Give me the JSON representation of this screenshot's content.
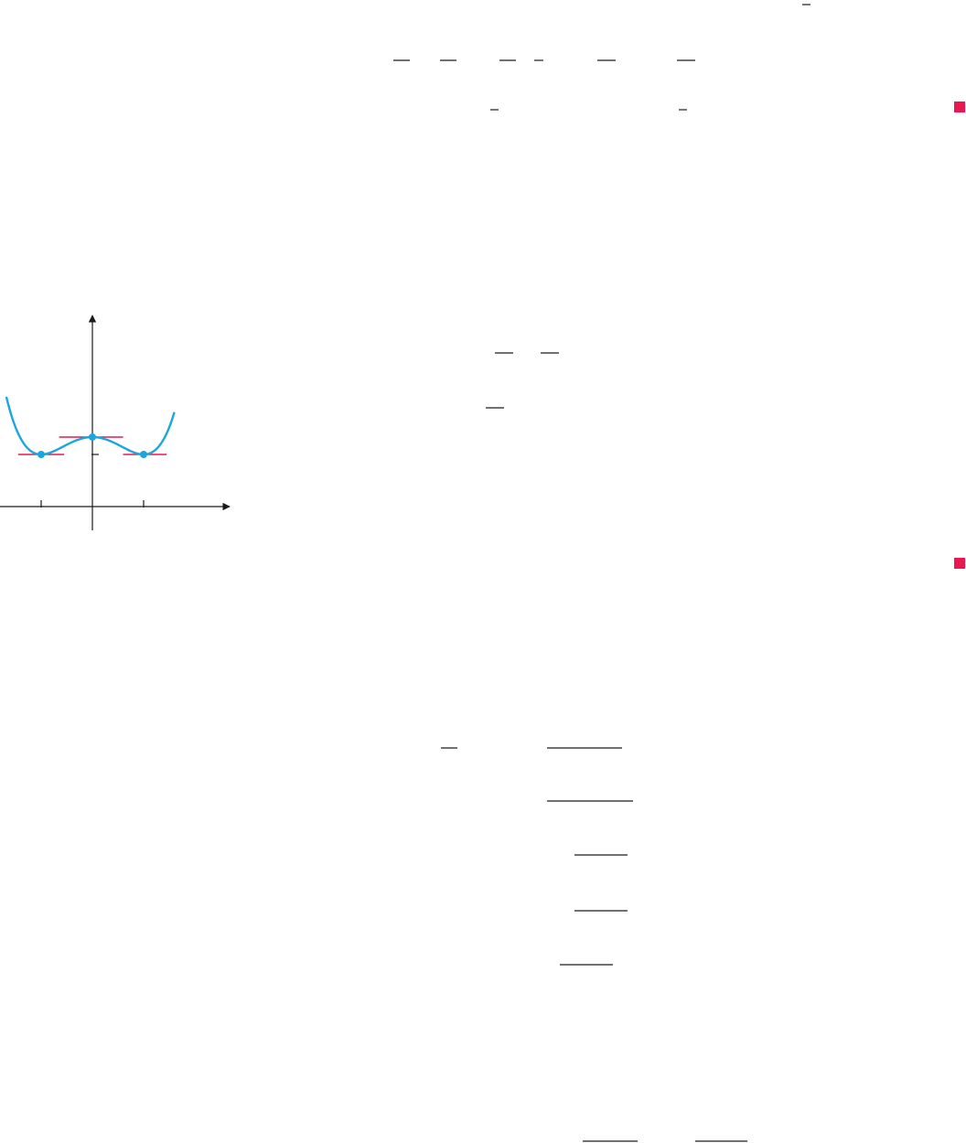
{
  "page": {
    "section_end_markers": [
      "end-of-example-marker",
      "end-of-example-marker"
    ],
    "colors": {
      "background": "#ffffff",
      "curve": "#1ba6e0",
      "tangent_lines": "#e8194f",
      "markers": "#e8194f",
      "rules": "#1a1a1a",
      "axes": "#1a1a1a"
    }
  },
  "chart_data": {
    "type": "line",
    "title": "",
    "xlabel": "",
    "ylabel": "",
    "grid": false,
    "x_ticks": [
      -1,
      1
    ],
    "y_ticks": [
      3
    ],
    "xlim": [
      -1.8,
      2.6
    ],
    "ylim": [
      -0.5,
      6.7
    ],
    "series": [
      {
        "function": "x^4 - 2x^2 + 4",
        "x_range": [
          -1.68,
          1.6
        ]
      }
    ],
    "critical_points": [
      {
        "x": -1,
        "y": 3,
        "kind": "minimum"
      },
      {
        "x": 0,
        "y": 4,
        "kind": "maximum"
      },
      {
        "x": 1,
        "y": 3,
        "kind": "minimum"
      }
    ],
    "horizontal_tangents": [
      {
        "x_from": -1.45,
        "x_to": -0.55,
        "y": 3
      },
      {
        "x_from": -0.65,
        "x_to": 0.6,
        "y": 4
      },
      {
        "x_from": 0.6,
        "x_to": 1.45,
        "y": 3
      }
    ]
  }
}
